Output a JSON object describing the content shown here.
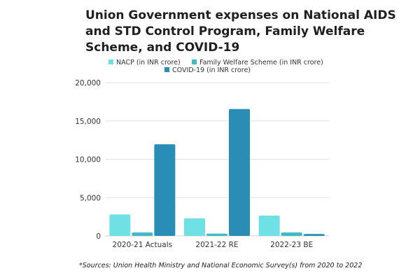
{
  "chart_data": {
    "type": "bar",
    "title_lines": [
      "Union Government expenses on National AIDS",
      "and STD Control Program,  Family Welfare",
      "Scheme, and COVID-19"
    ],
    "categories": [
      "2020-21 Actuals",
      "2021-22 RE",
      "2022-23 BE"
    ],
    "series": [
      {
        "name": "NACP (in INR crore)",
        "color": "#6fe0e4",
        "values": [
          2800,
          2300,
          2650
        ]
      },
      {
        "name": "Family Welfare Scheme (in INR crore)",
        "color": "#3fb8c8",
        "values": [
          450,
          300,
          450
        ]
      },
      {
        "name": "COVID-19 (in INR crore)",
        "color": "#2a8db5",
        "values": [
          11950,
          16550,
          250
        ]
      }
    ],
    "y_ticks": [
      "0",
      "5,000",
      "10,000",
      "15,000",
      "20,000"
    ],
    "ylim": [
      0,
      20000
    ],
    "grid": true,
    "legend_position": "top"
  },
  "source_note": "*Sources: Union Health Ministry and National Economic Survey(s) from 2020 to 2022"
}
